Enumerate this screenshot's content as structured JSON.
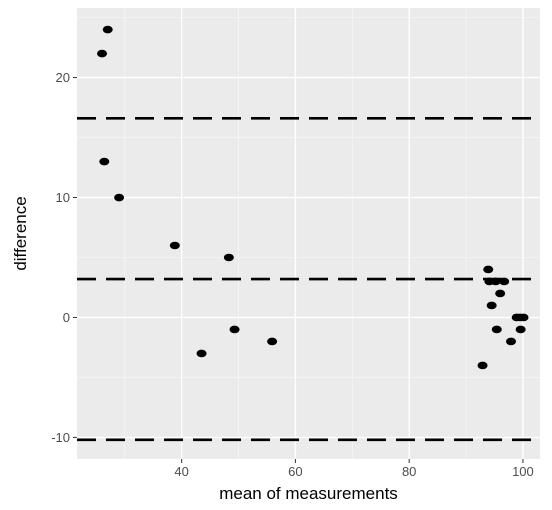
{
  "chart_data": {
    "type": "scatter",
    "title": "",
    "xlabel": "mean of measurements",
    "ylabel": "difference",
    "xlim": [
      21.6,
      103.0
    ],
    "ylim": [
      -11.8,
      25.8
    ],
    "x_ticks": [
      40,
      60,
      80,
      100
    ],
    "y_ticks": [
      -10,
      0,
      10,
      20
    ],
    "x_tick_labels": [
      "40",
      "60",
      "80",
      "100"
    ],
    "y_tick_labels": [
      "-10",
      "0",
      "10",
      "20"
    ],
    "x_minor_ticks": [
      30,
      50,
      70,
      90
    ],
    "y_minor_ticks": [
      -5,
      5,
      15,
      25
    ],
    "grid": true,
    "reference_lines": [
      {
        "y": 16.6,
        "style": "dashed"
      },
      {
        "y": 3.2,
        "style": "dashed"
      },
      {
        "y": -10.2,
        "style": "dashed"
      }
    ],
    "points": [
      {
        "x": 27.0,
        "y": 24
      },
      {
        "x": 26.0,
        "y": 22
      },
      {
        "x": 26.4,
        "y": 13
      },
      {
        "x": 29.0,
        "y": 10
      },
      {
        "x": 38.8,
        "y": 6
      },
      {
        "x": 48.3,
        "y": 5
      },
      {
        "x": 43.5,
        "y": -3
      },
      {
        "x": 49.3,
        "y": -1
      },
      {
        "x": 55.9,
        "y": -2
      },
      {
        "x": 92.9,
        "y": -4
      },
      {
        "x": 93.9,
        "y": 4
      },
      {
        "x": 94.1,
        "y": 3
      },
      {
        "x": 95.2,
        "y": 3
      },
      {
        "x": 96.7,
        "y": 3
      },
      {
        "x": 94.5,
        "y": 1
      },
      {
        "x": 96.0,
        "y": 2
      },
      {
        "x": 95.4,
        "y": -1
      },
      {
        "x": 97.9,
        "y": -2
      },
      {
        "x": 98.9,
        "y": 0
      },
      {
        "x": 99.5,
        "y": 0
      },
      {
        "x": 100.1,
        "y": 0
      },
      {
        "x": 99.6,
        "y": -1
      }
    ],
    "colors": {
      "panel_background": "#ebebeb",
      "grid_major": "#ffffff",
      "grid_minor": "#f5f5f5",
      "points": "#000000",
      "reference_lines": "#000000",
      "tick_labels": "#4d4d4d",
      "axis_titles": "#000000"
    }
  }
}
